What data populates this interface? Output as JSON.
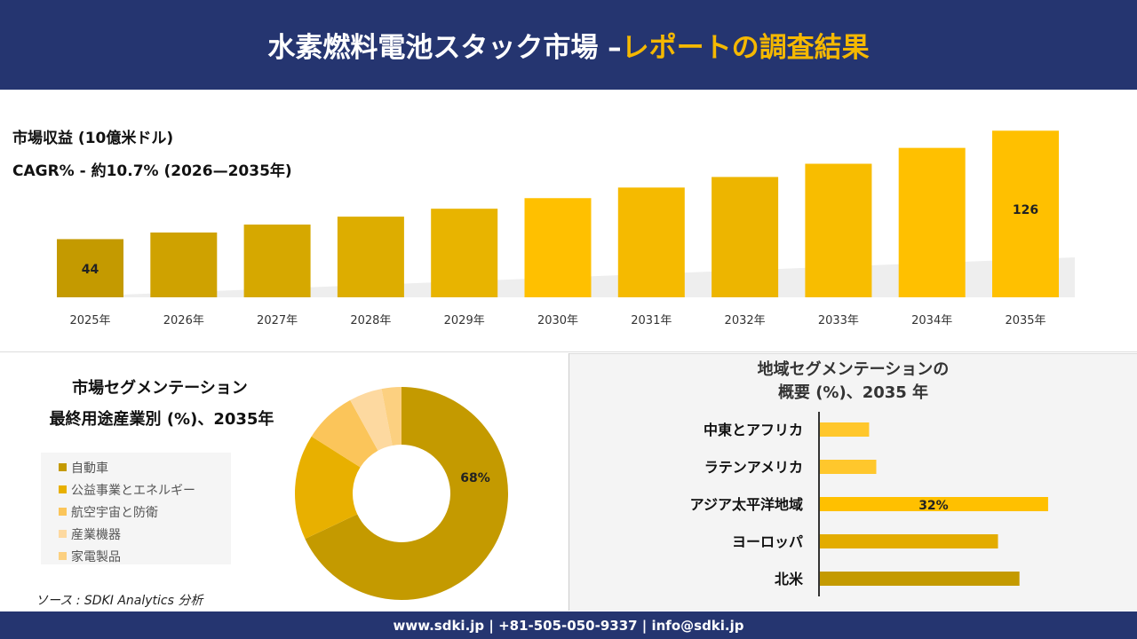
{
  "header": {
    "title_main": "水素燃料電池スタック市場 –",
    "title_accent": "レポートの調査結果"
  },
  "revenue": {
    "label": "市場収益 (10億米ドル)",
    "cagr": "CAGR% - 約10.7% (2026—2035年)"
  },
  "segment": {
    "title1": "市場セグメンテーション",
    "title2": "最終用途産業別 (%)、2035年"
  },
  "regional": {
    "title1": "地域セグメンテーションの",
    "title2": "概要 (%)、2035 年"
  },
  "source": "ソース : SDKI Analytics 分析",
  "footer": "www.sdki.jp | +81-505-050-9337 | info@sdki.jp",
  "colors": {
    "navy": "#253570",
    "accent": "#F5B800"
  },
  "chart_data": [
    {
      "type": "bar",
      "title": "市場収益 (10億米ドル)",
      "categories": [
        "2025年",
        "2026年",
        "2027年",
        "2028年",
        "2029年",
        "2030年",
        "2031年",
        "2032年",
        "2033年",
        "2034年",
        "2035年"
      ],
      "values": [
        44,
        49,
        55,
        61,
        67,
        75,
        83,
        91,
        101,
        113,
        126
      ],
      "data_labels": {
        "0": "44",
        "10": "126"
      }
    },
    {
      "type": "pie",
      "donut": true,
      "title": "最終用途産業別 (%)、2035年",
      "categories": [
        "自動車",
        "公益事業とエネルギー",
        "航空宇宙と防衛",
        "産業機器",
        "家電製品"
      ],
      "values": [
        68,
        16,
        8,
        5,
        3
      ],
      "colors": [
        "#C49A00",
        "#E8B000",
        "#FBC55A",
        "#FDD9A0",
        "#FCD080"
      ],
      "data_labels": {
        "0": "68%"
      },
      "legend": "left"
    },
    {
      "type": "bar",
      "orientation": "horizontal",
      "title": "地域セグメンテーションの概要 (%)、2035 年",
      "categories": [
        "中東とアフリカ",
        "ラテンアメリカ",
        "アジア太平洋地域",
        "ヨーロッパ",
        "北米"
      ],
      "values": [
        7,
        8,
        32,
        25,
        28
      ],
      "colors": [
        "#FFC72C",
        "#FFC72C",
        "#FFC000",
        "#E3AC00",
        "#C49A00"
      ],
      "data_labels": {
        "2": "32%"
      }
    }
  ]
}
